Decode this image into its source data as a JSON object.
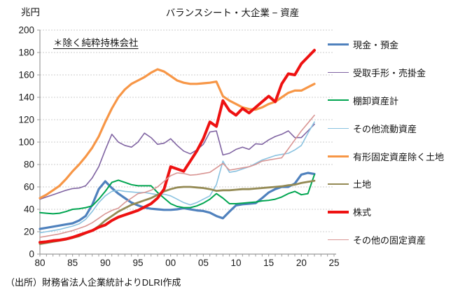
{
  "chart_data": {
    "type": "line",
    "title": "バランスシート・大企業 − 資産",
    "unit_label": "兆円",
    "annotation": "＊除く純粋持株会社",
    "source": "（出所）財務省法人企業統計よりDLRI作成",
    "legend_position": "right",
    "axis": {
      "x_min": 1980,
      "x_max": 2025,
      "y_min": 0,
      "y_max": 200,
      "y_step": 20,
      "grid": "horizontal-dashed"
    },
    "x_ticks": [
      {
        "year": 1980,
        "label": "80"
      },
      {
        "year": 1985,
        "label": "85"
      },
      {
        "year": 1990,
        "label": "90"
      },
      {
        "year": 1995,
        "label": "95"
      },
      {
        "year": 2000,
        "label": "00"
      },
      {
        "year": 2005,
        "label": "05"
      },
      {
        "year": 2010,
        "label": "10"
      },
      {
        "year": 2015,
        "label": "15"
      },
      {
        "year": 2020,
        "label": "20"
      },
      {
        "year": 2025,
        "label": "25"
      }
    ],
    "y_ticks": [
      0,
      20,
      40,
      60,
      80,
      100,
      120,
      140,
      160,
      180,
      200
    ],
    "years_start": 1980,
    "years_end": 2022,
    "series": [
      {
        "id": "cash-deposits",
        "name": "現金・預金",
        "color": "#4F81BD",
        "width": 3.2,
        "values": [
          22.5,
          23.5,
          24.5,
          25.5,
          26.5,
          27.5,
          30,
          34,
          44,
          58,
          65,
          59,
          54,
          50,
          46,
          43.5,
          41.5,
          40.5,
          40,
          39.5,
          39.5,
          40,
          41,
          40,
          39,
          38.5,
          37,
          34,
          32,
          38,
          43.5,
          44.5,
          45,
          45.5,
          50,
          55,
          58,
          60,
          60,
          63,
          71,
          72.5,
          71.5
        ]
      },
      {
        "id": "notes-accounts-receivable",
        "name": "受取手形・売掛金",
        "color": "#8064A2",
        "width": 1.6,
        "values": [
          49,
          51,
          53,
          55,
          57,
          58.5,
          59,
          61,
          68,
          78,
          93,
          107,
          100,
          97,
          95.5,
          100,
          108,
          104,
          98,
          99,
          103,
          97,
          92,
          89.5,
          93,
          98,
          109,
          110,
          88.5,
          90,
          93.5,
          95.5,
          93.5,
          98.5,
          98,
          102,
          105,
          107,
          110,
          104,
          104,
          110,
          116
        ]
      },
      {
        "id": "inventories",
        "name": "棚卸資産計",
        "color": "#00A550",
        "width": 2,
        "values": [
          37,
          36.5,
          36,
          36.5,
          38,
          40,
          40.5,
          41.5,
          43,
          49,
          56,
          64,
          66,
          64,
          62,
          61,
          61,
          61,
          55,
          50,
          45,
          42.5,
          41.5,
          41.5,
          43,
          45.5,
          49,
          54,
          50,
          45,
          45,
          45.5,
          46,
          46.5,
          47.5,
          48,
          49,
          51,
          54,
          56,
          53,
          54,
          71
        ]
      },
      {
        "id": "other-current-assets",
        "name": "その他流動資産",
        "color": "#8AC2E0",
        "width": 1.6,
        "values": [
          19,
          20,
          21,
          22,
          23.5,
          25,
          27,
          31,
          38,
          46,
          52,
          56,
          57,
          56,
          55.5,
          55,
          55,
          54,
          53,
          53.5,
          52,
          49,
          46,
          44,
          46,
          49,
          52,
          62,
          83,
          73,
          74,
          76,
          78,
          81,
          84,
          86,
          88,
          89,
          90,
          93,
          97,
          108,
          118
        ]
      },
      {
        "id": "tangible-fixed-assets-excl-land",
        "name": "有形固定資産除く土地",
        "color": "#F79646",
        "width": 3.2,
        "values": [
          50,
          53,
          57,
          61,
          67,
          74,
          80,
          87,
          95,
          105,
          118,
          130,
          140,
          147,
          152,
          155,
          158,
          162,
          165,
          163,
          159,
          155,
          153,
          152,
          152,
          152.5,
          153,
          154,
          141,
          137,
          134,
          131,
          129.5,
          129,
          131,
          134,
          136,
          140,
          144,
          146,
          146,
          149,
          152
        ]
      },
      {
        "id": "land",
        "name": "土地",
        "color": "#948A54",
        "width": 2.8,
        "values": [
          9,
          10,
          11,
          12,
          13,
          14.5,
          16,
          18.5,
          21,
          25,
          30,
          34,
          38,
          41,
          44,
          46,
          48,
          50,
          53,
          56,
          58,
          59.5,
          60,
          60,
          59.5,
          59,
          58,
          56.5,
          57,
          57,
          57.5,
          58,
          58,
          58.5,
          59,
          59.5,
          60,
          60.5,
          61.5,
          62,
          63.5,
          64.5,
          65.5
        ]
      },
      {
        "id": "stocks",
        "name": "株式",
        "color": "#EE1111",
        "width": 4,
        "values": [
          10.5,
          11,
          12,
          12.5,
          13.5,
          15,
          17,
          19,
          21,
          24,
          26,
          30,
          33,
          35,
          37,
          39,
          42,
          45,
          50,
          58,
          78,
          76,
          74,
          83,
          92,
          103,
          118,
          114,
          137,
          128,
          124,
          130,
          126,
          131,
          136,
          141,
          136,
          152,
          161,
          160,
          170,
          176,
          182
        ]
      },
      {
        "id": "other-fixed-assets",
        "name": "その他の固定資産",
        "color": "#D99694",
        "width": 1.6,
        "values": [
          15,
          16,
          17,
          18,
          19.5,
          21,
          23,
          25,
          28,
          32,
          36,
          39,
          41,
          46,
          50,
          54,
          55,
          57,
          60,
          65,
          70,
          72.5,
          72,
          70.5,
          71,
          72,
          73,
          77,
          81,
          75,
          76,
          77,
          78,
          80,
          83,
          84,
          85,
          86,
          94,
          102,
          110,
          117,
          124
        ]
      }
    ]
  }
}
